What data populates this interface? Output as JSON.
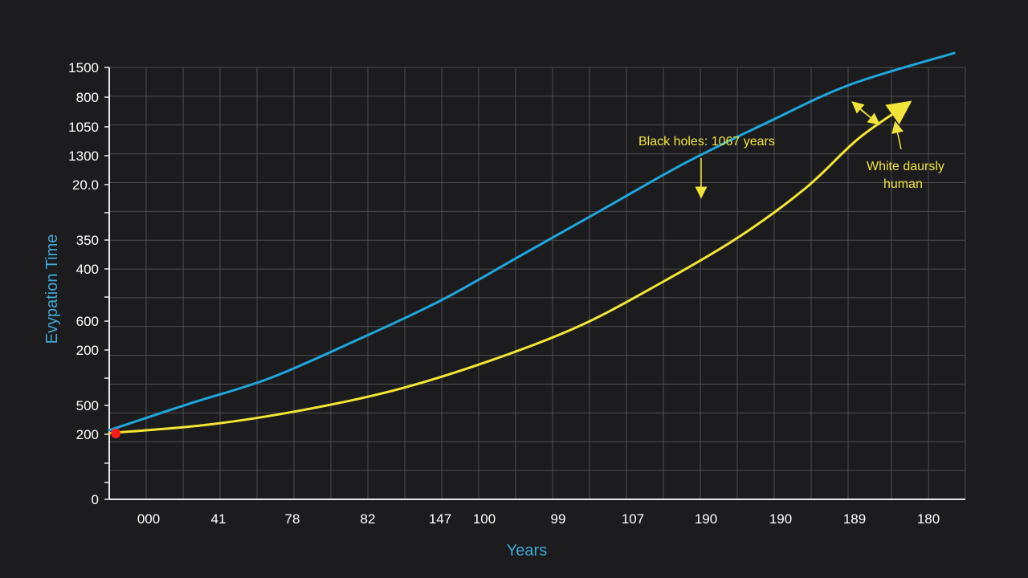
{
  "chart_data": {
    "type": "line",
    "title": "",
    "xlabel": "Years",
    "ylabel": "Evypation Time",
    "x_tick_labels": [
      "000",
      "41",
      "78",
      "82",
      "147",
      "100",
      "99",
      "107",
      "190",
      "190",
      "189",
      "180"
    ],
    "y_tick_labels": [
      "1500",
      "800",
      "1050",
      "1300",
      "20.0",
      "",
      "350",
      "400",
      "",
      "600",
      "200",
      "",
      "500",
      "200",
      "",
      "",
      "0"
    ],
    "x_grid_count": 23,
    "y_grid_count": 15,
    "grid": true,
    "ylim": [
      0,
      15
    ],
    "xlim": [
      0,
      23
    ],
    "series": [
      {
        "color": "#1fa6dd",
        "x": [
          0.0,
          2.1,
          4.3,
          6.6,
          8.9,
          11.1,
          13.3,
          15.5,
          17.7,
          19.9,
          22.7
        ],
        "y": [
          2.4,
          3.3,
          4.2,
          5.5,
          6.9,
          8.5,
          10.1,
          11.7,
          13.1,
          14.4,
          15.5
        ]
      },
      {
        "color": "#f4e632",
        "x": [
          0.0,
          2.7,
          5.2,
          7.7,
          10.2,
          12.6,
          14.8,
          16.9,
          18.7,
          20.1,
          21.3
        ],
        "y": [
          2.3,
          2.6,
          3.1,
          3.8,
          4.8,
          6.0,
          7.5,
          9.1,
          10.8,
          12.5,
          13.6
        ]
      }
    ],
    "marker": {
      "x": 0.0,
      "y": 2.4,
      "color": "#ff1a1a"
    },
    "annotations": [
      {
        "text": "Black holes: 1067 years",
        "color": "#f2e43a"
      },
      {
        "text": "White daursly",
        "color": "#f2e43a"
      },
      {
        "text": "human",
        "color": "#f2e43a"
      }
    ]
  }
}
